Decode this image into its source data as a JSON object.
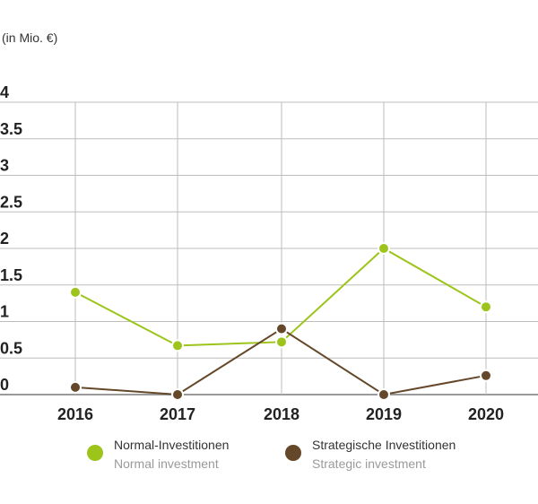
{
  "unit_label": "(in Mio. €)",
  "chart_data": {
    "type": "line",
    "categories": [
      "2016",
      "2017",
      "2018",
      "2019",
      "2020"
    ],
    "ylim": [
      0,
      4
    ],
    "y_ticks": [
      "0",
      "0.5",
      "1",
      "1.5",
      "2",
      "2.5",
      "3",
      "3.5",
      "4"
    ],
    "grid": true,
    "legend_position": "bottom",
    "series": [
      {
        "name": "Normal-Investitionen",
        "name_en": "Normal investment",
        "color": "#9dc41a",
        "values": [
          1.4,
          0.67,
          0.72,
          2.0,
          1.2
        ]
      },
      {
        "name": "Strategische Investitionen",
        "name_en": "Strategic investment",
        "color": "#65482a",
        "values": [
          0.1,
          0.0,
          0.9,
          0.0,
          0.26
        ]
      }
    ]
  }
}
